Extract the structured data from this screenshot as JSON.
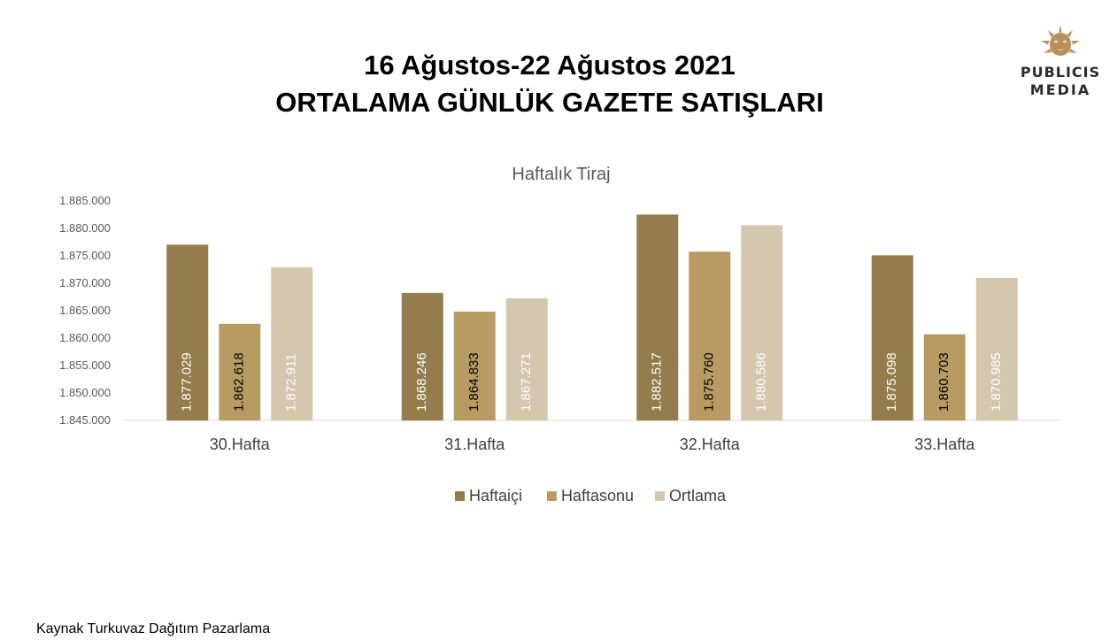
{
  "header": {
    "title_line1": "16 Ağustos-22 Ağustos 2021",
    "title_line2": "ORTALAMA GÜNLÜK GAZETE SATIŞLARI"
  },
  "logo": {
    "line1": "PUBLICIS",
    "line2": "MEDIA",
    "icon": "lion-head-icon"
  },
  "footer": {
    "source": "Kaynak Turkuvaz Dağıtım Pazarlama"
  },
  "colors": {
    "haftaici": "#957c4d",
    "haftasonu": "#b89b62",
    "ortlama": "#d5c6ae"
  },
  "chart_data": {
    "type": "bar",
    "title": "Haftalık Tiraj",
    "categories": [
      "30.Hafta",
      "31.Hafta",
      "32.Hafta",
      "33.Hafta"
    ],
    "series": [
      {
        "name": "Haftaiçi",
        "values": [
          1877029,
          1868246,
          1882517,
          1875098
        ],
        "labels": [
          "1.877.029",
          "1.868.246",
          "1.882.517",
          "1.875.098"
        ]
      },
      {
        "name": "Haftasonu",
        "values": [
          1862618,
          1864833,
          1875760,
          1860703
        ],
        "labels": [
          "1.862.618",
          "1.864.833",
          "1.875.760",
          "1.860.703"
        ]
      },
      {
        "name": "Ortlama",
        "values": [
          1872911,
          1867271,
          1880586,
          1870985
        ],
        "labels": [
          "1.872.911",
          "1.867.271",
          "1.880.586",
          "1.870.985"
        ]
      }
    ],
    "ylim": [
      1845000,
      1885000
    ],
    "yticks": [
      {
        "value": 1885000,
        "label": "1.885.000"
      },
      {
        "value": 1880000,
        "label": "1.880.000"
      },
      {
        "value": 1875000,
        "label": "1.875.000"
      },
      {
        "value": 1870000,
        "label": "1.870.000"
      },
      {
        "value": 1865000,
        "label": "1.865.000"
      },
      {
        "value": 1860000,
        "label": "1.860.000"
      },
      {
        "value": 1855000,
        "label": "1.855.000"
      },
      {
        "value": 1850000,
        "label": "1.850.000"
      },
      {
        "value": 1845000,
        "label": "1.845.000"
      }
    ],
    "grid": false,
    "legend": "bottom"
  }
}
